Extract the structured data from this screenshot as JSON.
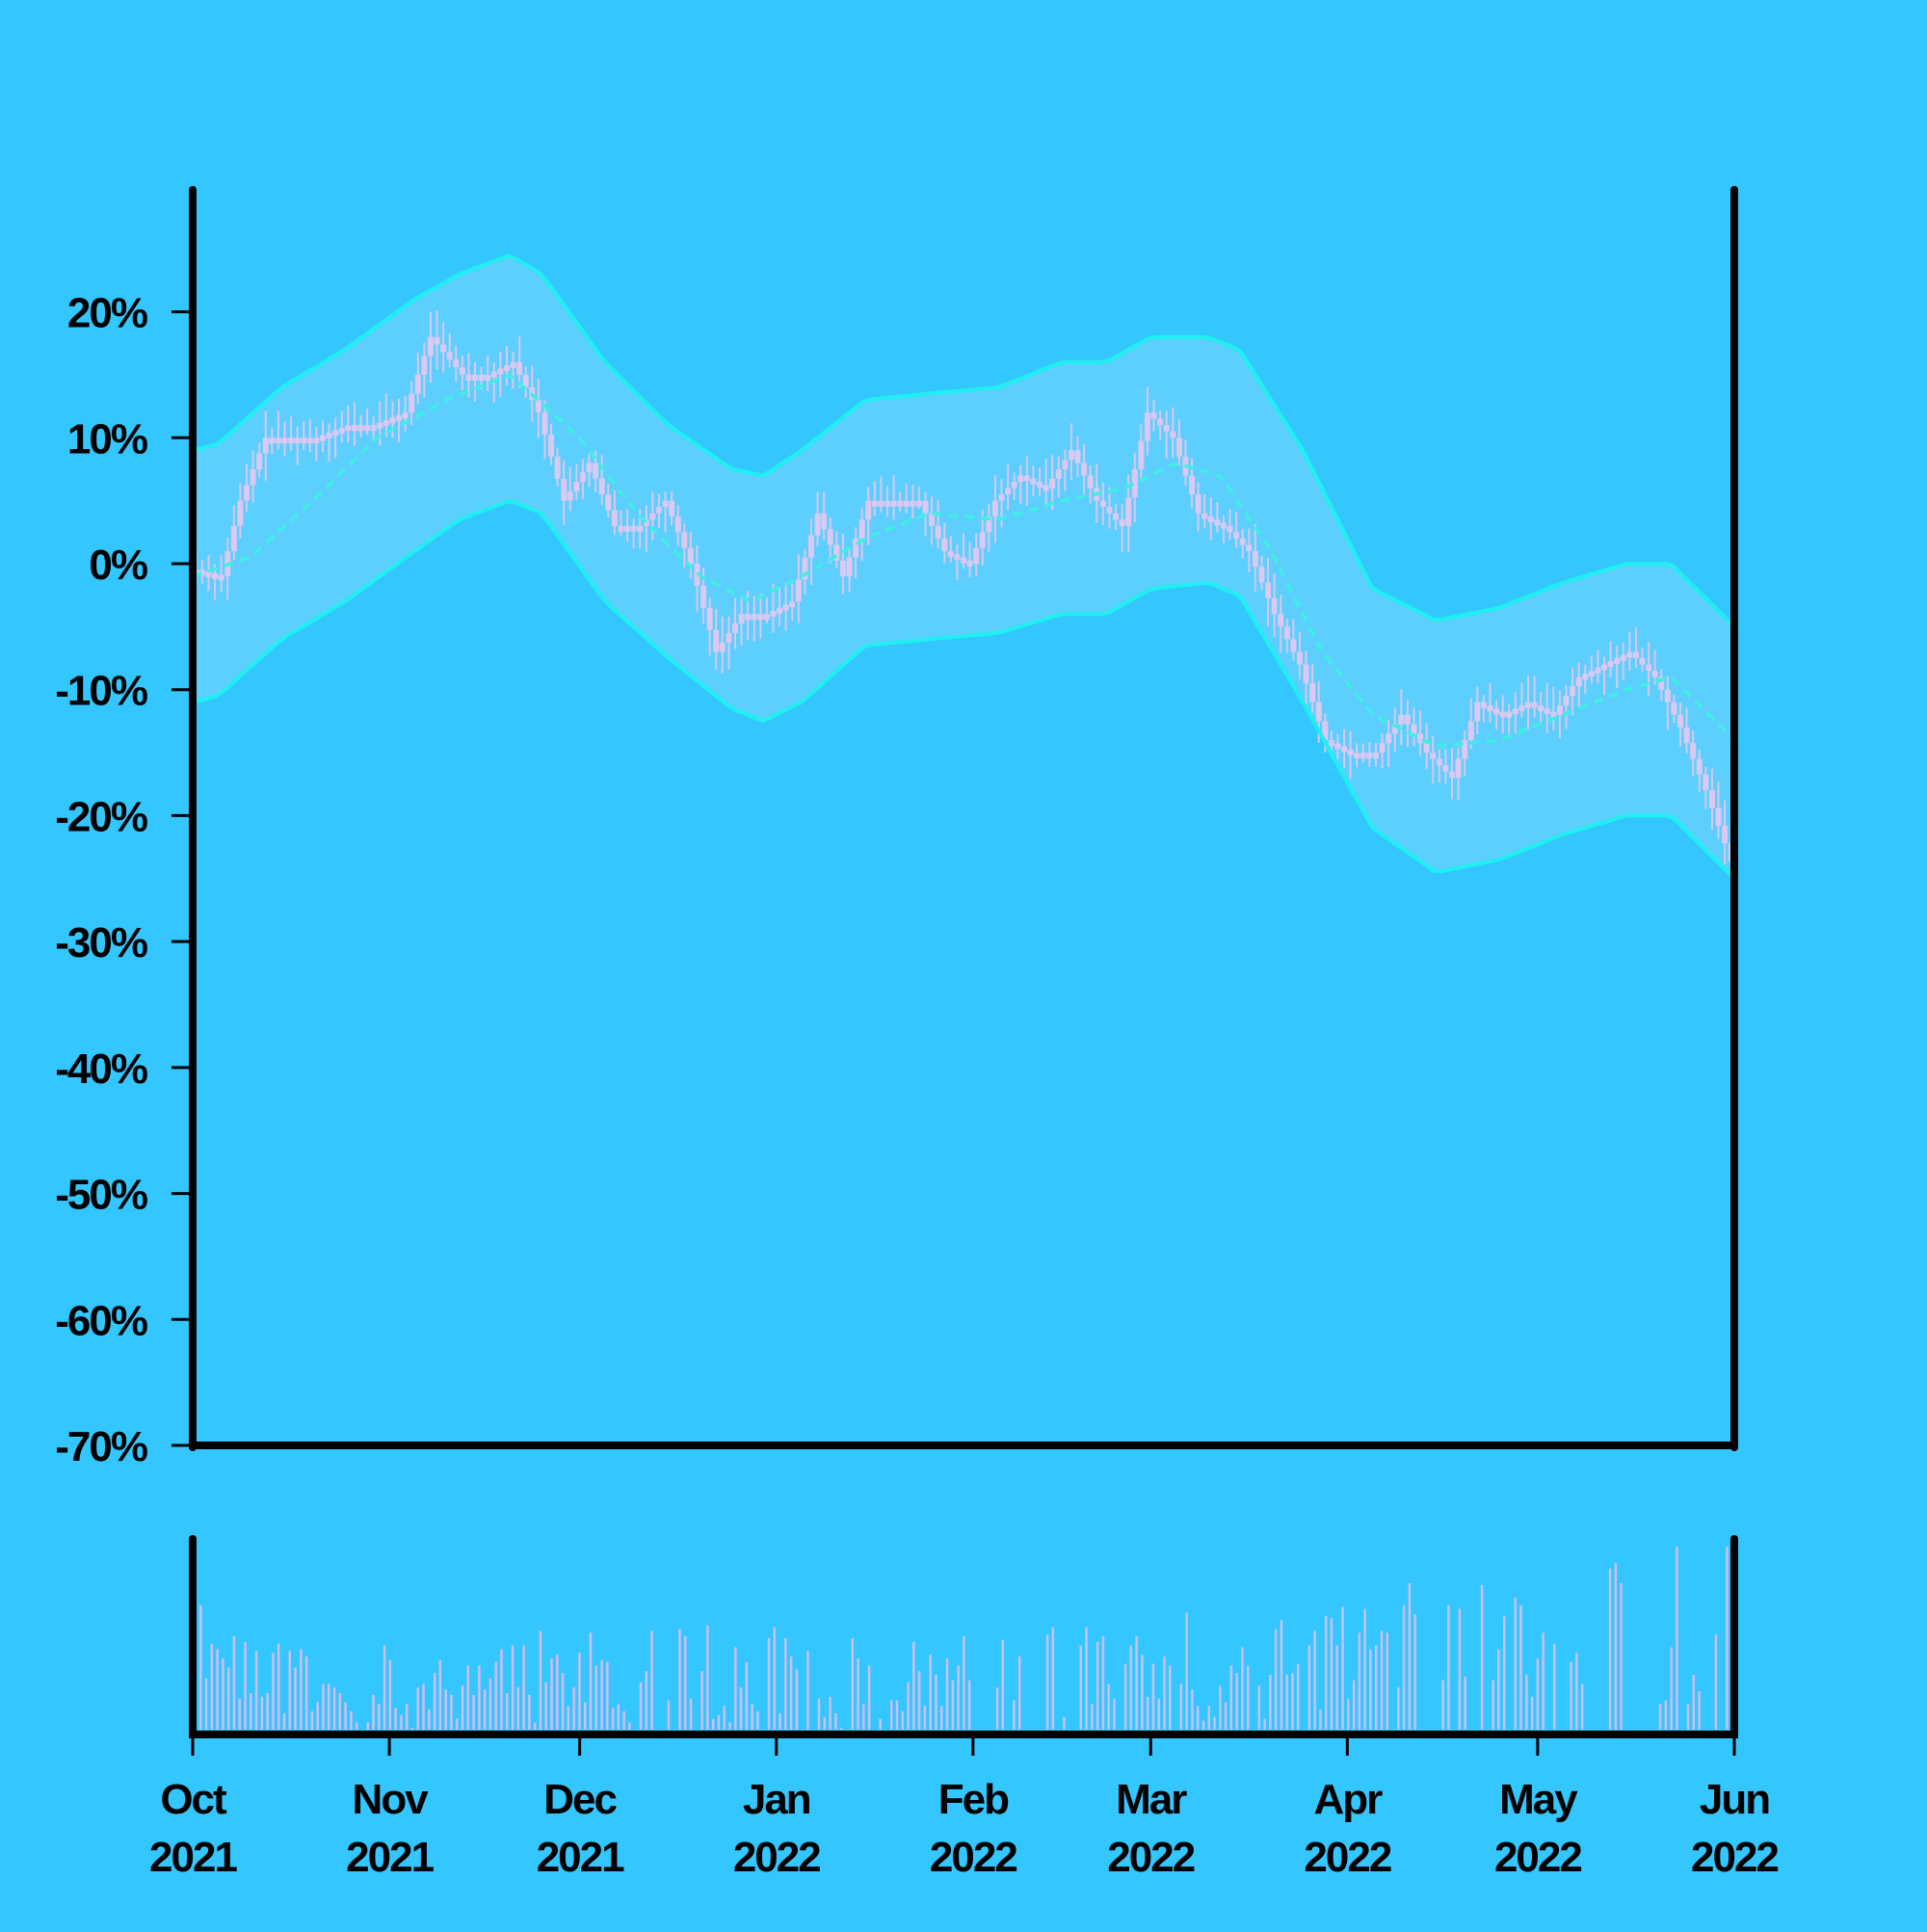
{
  "chart_data": [
    {
      "type": "candlestick",
      "title": "",
      "xlabel": "",
      "ylabel": "",
      "y_unit": "%",
      "ylim": [
        -70,
        30
      ],
      "yticks": [
        {
          "value": 20,
          "label": "20%"
        },
        {
          "value": 10,
          "label": "10%"
        },
        {
          "value": 0,
          "label": "0%"
        },
        {
          "value": -10,
          "label": "-10%"
        },
        {
          "value": -20,
          "label": "-20%"
        },
        {
          "value": -30,
          "label": "-30%"
        },
        {
          "value": -40,
          "label": "-40%"
        },
        {
          "value": -50,
          "label": "-50%"
        },
        {
          "value": -60,
          "label": "-60%"
        },
        {
          "value": -70,
          "label": "-70%"
        }
      ],
      "xlim": [
        "2021-10-01",
        "2022-06-01"
      ],
      "xticks": [
        {
          "date": "2021-10-01",
          "line1": "Oct",
          "line2": "2021"
        },
        {
          "date": "2021-11-01",
          "line1": "Nov",
          "line2": "2021"
        },
        {
          "date": "2021-12-01",
          "line1": "Dec",
          "line2": "2021"
        },
        {
          "date": "2022-01-01",
          "line1": "Jan",
          "line2": "2022"
        },
        {
          "date": "2022-02-01",
          "line1": "Feb",
          "line2": "2022"
        },
        {
          "date": "2022-03-01",
          "line1": "Mar",
          "line2": "2022"
        },
        {
          "date": "2022-04-01",
          "line1": "Apr",
          "line2": "2022"
        },
        {
          "date": "2022-05-01",
          "line1": "May",
          "line2": "2022"
        },
        {
          "date": "2022-06-01",
          "line1": "Jun",
          "line2": "2022"
        }
      ],
      "close_series_percent": {
        "x": [
          "2021-10-01",
          "2021-10-05",
          "2021-10-08",
          "2021-10-12",
          "2021-10-15",
          "2021-10-20",
          "2021-10-25",
          "2021-10-29",
          "2021-11-03",
          "2021-11-07",
          "2021-11-12",
          "2021-11-16",
          "2021-11-20",
          "2021-11-24",
          "2021-11-28",
          "2021-12-02",
          "2021-12-06",
          "2021-12-10",
          "2021-12-14",
          "2021-12-18",
          "2021-12-22",
          "2021-12-26",
          "2021-12-30",
          "2022-01-03",
          "2022-01-07",
          "2022-01-11",
          "2022-01-15",
          "2022-01-19",
          "2022-01-23",
          "2022-01-27",
          "2022-01-31",
          "2022-02-04",
          "2022-02-08",
          "2022-02-12",
          "2022-02-16",
          "2022-02-20",
          "2022-02-24",
          "2022-02-28",
          "2022-03-04",
          "2022-03-08",
          "2022-03-12",
          "2022-03-16",
          "2022-03-20",
          "2022-03-24",
          "2022-03-28",
          "2022-04-01",
          "2022-04-05",
          "2022-04-09",
          "2022-04-13",
          "2022-04-17",
          "2022-04-21",
          "2022-04-25",
          "2022-04-29",
          "2022-05-03",
          "2022-05-07",
          "2022-05-11",
          "2022-05-15",
          "2022-05-19",
          "2022-05-23",
          "2022-05-27",
          "2022-06-01"
        ],
        "close": [
          -0.5,
          -1,
          5,
          10,
          10,
          10,
          11,
          11,
          12,
          18,
          15,
          15,
          16,
          12,
          5,
          8,
          3,
          3,
          5,
          0,
          -7,
          -4,
          -4,
          -3,
          4,
          -1,
          5,
          5,
          5,
          1,
          0,
          5,
          7,
          6,
          9,
          5,
          3,
          12,
          10,
          4,
          3,
          1,
          -4,
          -8,
          -14,
          -15,
          -15,
          -12,
          -15,
          -17,
          -11,
          -12,
          -11,
          -12,
          -9,
          -8,
          -7,
          -9,
          -13,
          -18,
          -25
        ]
      },
      "moving_average_percent": {
        "x": [
          "2021-10-01",
          "2021-10-10",
          "2021-10-20",
          "2021-10-30",
          "2021-11-10",
          "2021-11-20",
          "2021-12-01",
          "2021-12-10",
          "2021-12-20",
          "2021-12-28",
          "2022-01-05",
          "2022-01-15",
          "2022-01-25",
          "2022-02-05",
          "2022-02-15",
          "2022-02-25",
          "2022-03-05",
          "2022-03-12",
          "2022-03-20",
          "2022-03-28",
          "2022-04-05",
          "2022-04-15",
          "2022-04-25",
          "2022-05-05",
          "2022-05-15",
          "2022-05-22",
          "2022-06-01"
        ],
        "values": [
          -1,
          0.5,
          5,
          10,
          13,
          15,
          10,
          4,
          -1,
          -3,
          -1,
          2,
          4,
          3.5,
          5,
          6,
          8,
          7,
          1,
          -7,
          -12,
          -14.5,
          -14,
          -12,
          -10,
          -9,
          -14
        ]
      },
      "upper_band_percent": {
        "x": [
          "2021-10-01",
          "2021-10-05",
          "2021-10-15",
          "2021-10-25",
          "2021-11-05",
          "2021-11-12",
          "2021-11-20",
          "2021-11-25",
          "2021-12-05",
          "2021-12-15",
          "2021-12-25",
          "2021-12-30",
          "2022-01-05",
          "2022-01-15",
          "2022-01-25",
          "2022-02-05",
          "2022-02-15",
          "2022-02-22",
          "2022-03-01",
          "2022-03-10",
          "2022-03-15",
          "2022-03-25",
          "2022-04-05",
          "2022-04-15",
          "2022-04-25",
          "2022-05-05",
          "2022-05-15",
          "2022-05-22",
          "2022-06-01"
        ],
        "values": [
          9,
          9.5,
          14,
          17,
          21,
          23,
          24.5,
          23,
          16,
          11,
          7.5,
          7,
          9,
          13,
          13.5,
          14,
          16,
          16,
          18,
          18,
          17,
          9,
          -2,
          -4.5,
          -3.5,
          -1.5,
          0,
          0,
          -5
        ]
      },
      "lower_band_percent": {
        "x": [
          "2021-10-01",
          "2021-10-05",
          "2021-10-15",
          "2021-10-25",
          "2021-11-05",
          "2021-11-12",
          "2021-11-20",
          "2021-11-25",
          "2021-12-05",
          "2021-12-15",
          "2021-12-25",
          "2021-12-30",
          "2022-01-05",
          "2022-01-15",
          "2022-01-25",
          "2022-02-05",
          "2022-02-15",
          "2022-02-22",
          "2022-03-01",
          "2022-03-10",
          "2022-03-15",
          "2022-03-25",
          "2022-04-05",
          "2022-04-15",
          "2022-04-25",
          "2022-05-05",
          "2022-05-15",
          "2022-05-22",
          "2022-06-01"
        ],
        "values": [
          -11,
          -10.5,
          -6,
          -3,
          1,
          3.5,
          5,
          4,
          -3,
          -7.5,
          -11.5,
          -12.5,
          -11,
          -6.5,
          -6,
          -5.5,
          -4,
          -4,
          -2,
          -1.5,
          -2.5,
          -11,
          -21,
          -24.5,
          -23.5,
          -21.5,
          -20,
          -20,
          -25
        ]
      },
      "volume": {
        "ylim": [
          0,
          100
        ],
        "relative_values": [
          68,
          28,
          47,
          44,
          39,
          34,
          51,
          17,
          48,
          20,
          43,
          18,
          20,
          42,
          47,
          9,
          43,
          34,
          44,
          40,
          10,
          15,
          25,
          25,
          23,
          20,
          15,
          10,
          4,
          0,
          4,
          19,
          14,
          46,
          38,
          12,
          8,
          14,
          1,
          23,
          25,
          11,
          31,
          38,
          22,
          19,
          6,
          24,
          35,
          19,
          35,
          22,
          28,
          37,
          44,
          20,
          46,
          23,
          46,
          19,
          4,
          54,
          26,
          39,
          41,
          31,
          13,
          23,
          42,
          15,
          53,
          35,
          38,
          37,
          12,
          14,
          10,
          4,
          0,
          26,
          32,
          54,
          0,
          0,
          16,
          0,
          55,
          51,
          17,
          0,
          32,
          57,
          6,
          8,
          13,
          4,
          45,
          23,
          37,
          14,
          10,
          0,
          50,
          56,
          9,
          50,
          40,
          33,
          0,
          43,
          0,
          17,
          7,
          18,
          9,
          1,
          0,
          50,
          39,
          14,
          35,
          0,
          6,
          0,
          16,
          16,
          10,
          26,
          48,
          32,
          13,
          41,
          30,
          13,
          39,
          27,
          35,
          51,
          27,
          0,
          0,
          0,
          0,
          23,
          49,
          0,
          16,
          40,
          0,
          0,
          0,
          0,
          52,
          56,
          0,
          7,
          0,
          0,
          46,
          56,
          14,
          48,
          51,
          25,
          17,
          0,
          36,
          46,
          51,
          41,
          18,
          36,
          17,
          40,
          35,
          0,
          25,
          64,
          22,
          13,
          5,
          13,
          7,
          24,
          15,
          35,
          31,
          45,
          35,
          0,
          24,
          6,
          30,
          55,
          60,
          30,
          31,
          36,
          0,
          46,
          54,
          11,
          62,
          61,
          46,
          67,
          17,
          27,
          53,
          66,
          44,
          46,
          54,
          53,
          0,
          23,
          68,
          80,
          63,
          0,
          0,
          0,
          0,
          27,
          68,
          0,
          66,
          29,
          0,
          0,
          79,
          0,
          27,
          44,
          62,
          0,
          72,
          68,
          30,
          18,
          39,
          53,
          0,
          47,
          0,
          0,
          37,
          42,
          25,
          0,
          0,
          0,
          0,
          88,
          91,
          80,
          0,
          0,
          0,
          0,
          0,
          0,
          14,
          16,
          45,
          100,
          0,
          14,
          30,
          21,
          0,
          0,
          52,
          0,
          100
        ]
      }
    }
  ]
}
